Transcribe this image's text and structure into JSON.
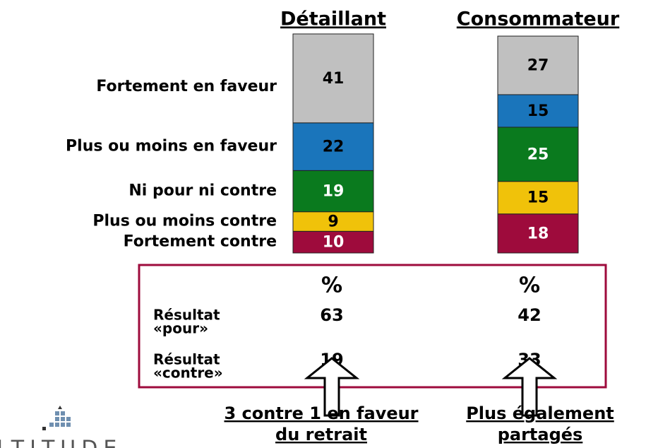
{
  "chart_data": {
    "type": "bar",
    "stacked": true,
    "categories": [
      "Détaillant",
      "Consommateur"
    ],
    "series": [
      {
        "name": "Fortement contre",
        "color": "#9e0b3c",
        "label_color": "#ffffff",
        "values": [
          10,
          18
        ]
      },
      {
        "name": "Plus ou moins contre",
        "color": "#f0c20a",
        "label_color": "#000000",
        "values": [
          9,
          15
        ]
      },
      {
        "name": "Ni pour ni contre",
        "color": "#0a7a1e",
        "label_color": "#ffffff",
        "values": [
          19,
          25
        ]
      },
      {
        "name": "Plus ou moins en faveur",
        "color": "#1a75bb",
        "label_color": "#000000",
        "values": [
          22,
          15
        ]
      },
      {
        "name": "Fortement en faveur",
        "color": "#c0c0c0",
        "label_color": "#000000",
        "values": [
          41,
          27
        ]
      }
    ]
  },
  "summary": {
    "header": "%",
    "rows": [
      {
        "label": [
          "Résultat",
          "«pour»"
        ],
        "values": [
          63,
          42
        ]
      },
      {
        "label": [
          "Résultat",
          "«contre»"
        ],
        "values": [
          19,
          33
        ]
      }
    ]
  },
  "annotations": [
    {
      "lines": [
        "3 contre 1 en faveur",
        "du retrait"
      ]
    },
    {
      "lines": [
        "Plus également",
        "partagés"
      ]
    }
  ],
  "logo": "ALTITUDE"
}
